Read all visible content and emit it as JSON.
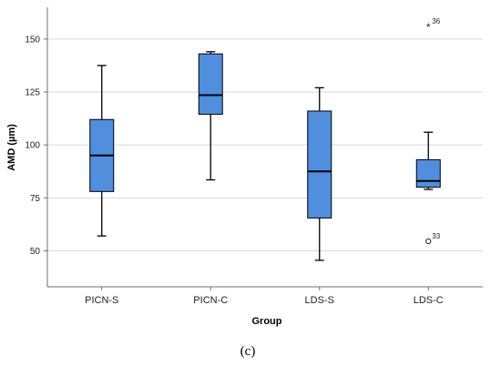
{
  "chart_data": {
    "type": "boxplot",
    "xlabel": "Group",
    "ylabel": "AMD (µm)",
    "categories": [
      "PICN-S",
      "PICN-C",
      "LDS-S",
      "LDS-C"
    ],
    "boxes": [
      {
        "category": "PICN-S",
        "min": 57,
        "q1": 78,
        "median": 95,
        "q3": 112,
        "max": 137.5
      },
      {
        "category": "PICN-C",
        "min": 83.5,
        "q1": 114.5,
        "median": 123.5,
        "q3": 143,
        "max": 144
      },
      {
        "category": "LDS-S",
        "min": 45.5,
        "q1": 65.5,
        "median": 87.5,
        "q3": 116,
        "max": 127
      },
      {
        "category": "LDS-C",
        "min": 79,
        "q1": 80,
        "median": 83,
        "q3": 93,
        "max": 106
      }
    ],
    "outliers": [
      {
        "category": "LDS-C",
        "value": 156,
        "label": "36",
        "marker": "star"
      },
      {
        "category": "LDS-C",
        "value": 54.5,
        "label": "33",
        "marker": "circle"
      }
    ],
    "y_ticks": [
      50,
      75,
      100,
      125,
      150
    ],
    "ylim": [
      33,
      165
    ],
    "grid": "horizontal",
    "colors": {
      "box_fill": "#4f8fde",
      "box_stroke": "#000000",
      "grid": "#d9d9d9",
      "axis": "#6f6f6f"
    }
  },
  "caption": "(c)"
}
